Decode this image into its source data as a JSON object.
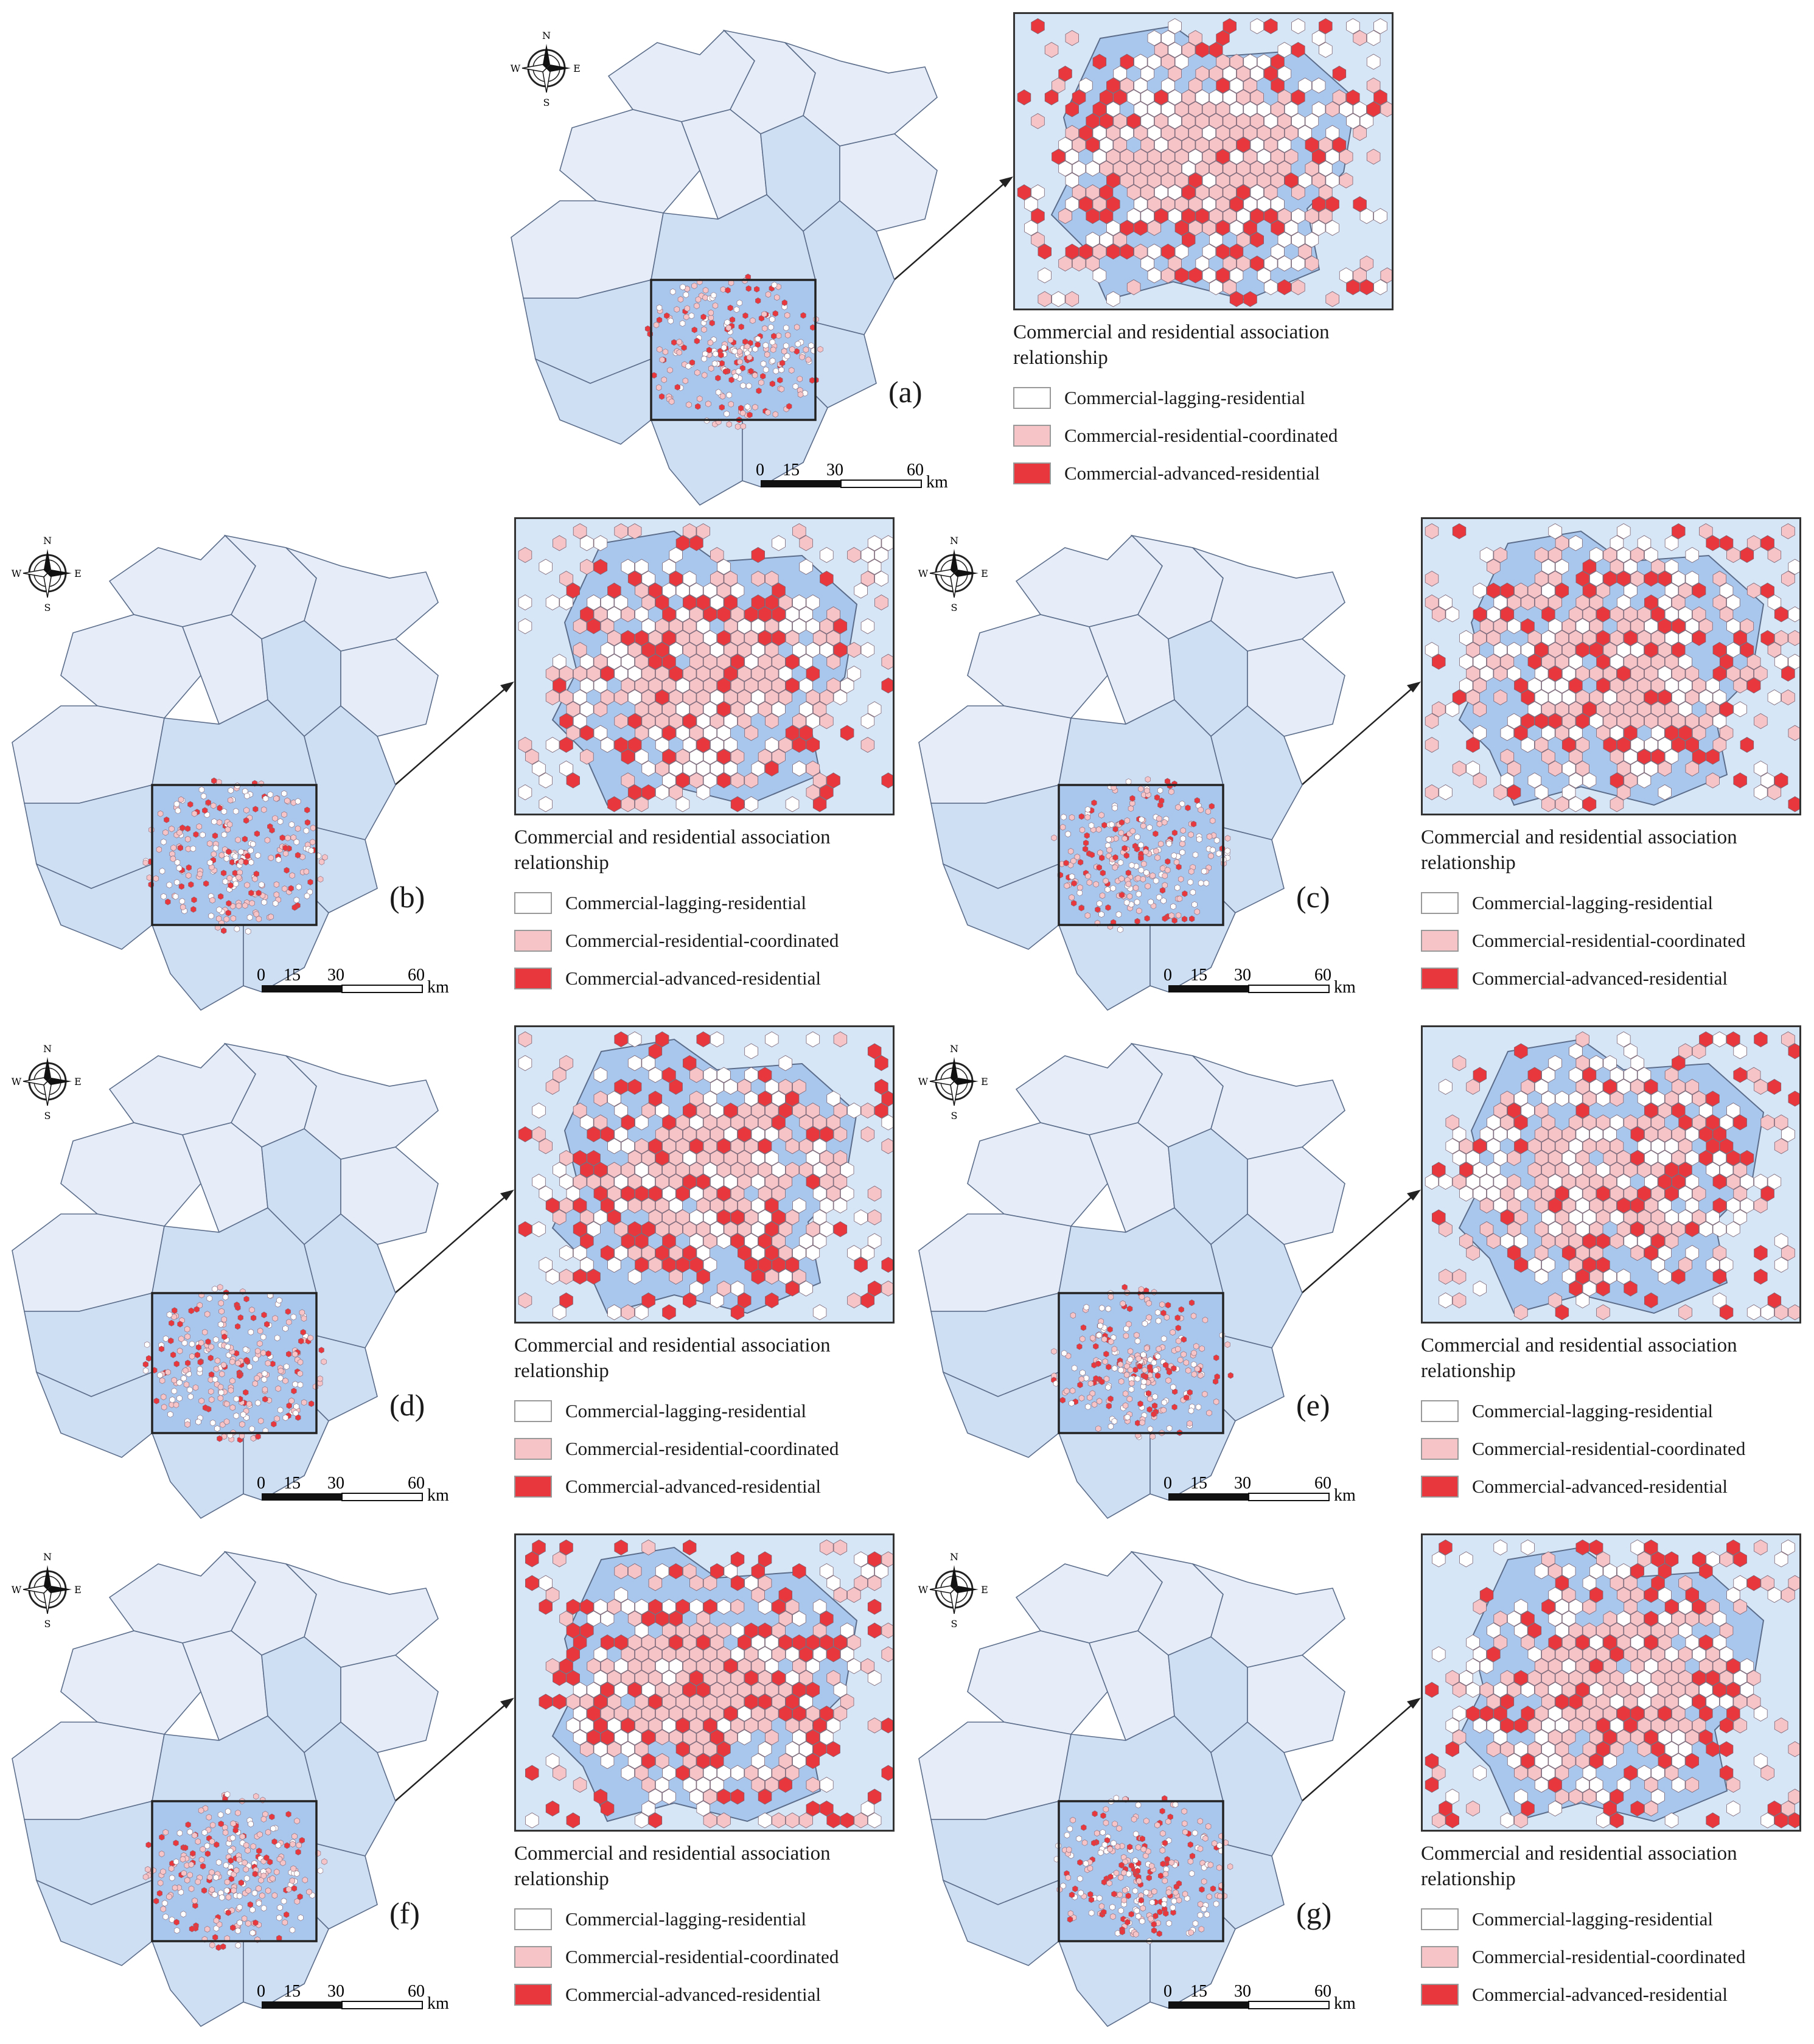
{
  "compass": {
    "n": "N",
    "s": "S",
    "e": "E",
    "w": "W"
  },
  "scale": {
    "ticks": [
      "0",
      "15",
      "30",
      "60"
    ],
    "unit": "km"
  },
  "legend": {
    "title": "Commercial and residential association relationship",
    "items": [
      {
        "label": "Commercial-lagging-residential",
        "color": "#ffffff"
      },
      {
        "label": "Commercial-residential-coordinated",
        "color": "#f6c3c6"
      },
      {
        "label": "Commercial-advanced-residential",
        "color": "#e8383d"
      }
    ]
  },
  "colors": {
    "region_light": "#e6edf8",
    "region_mid": "#cfdff3",
    "region_core": "#a9c7ec",
    "boundary": "#5b6d8a"
  },
  "panels": [
    {
      "id": "a",
      "label": "(a)"
    },
    {
      "id": "b",
      "label": "(b)"
    },
    {
      "id": "c",
      "label": "(c)"
    },
    {
      "id": "d",
      "label": "(d)"
    },
    {
      "id": "e",
      "label": "(e)"
    },
    {
      "id": "f",
      "label": "(f)"
    },
    {
      "id": "g",
      "label": "(g)"
    }
  ]
}
